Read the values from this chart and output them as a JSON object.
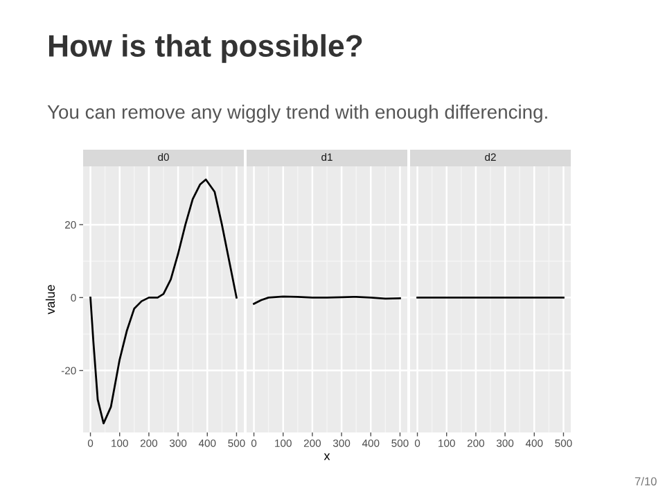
{
  "chart_data": [
    {
      "type": "line",
      "title": "d0",
      "ylabel": "value",
      "annotations": [
        "How is that possible?",
        "You can remove any wiggly trend with enough differencing.",
        "7/10"
      ],
      "x": [
        0,
        10,
        25,
        45,
        70,
        100,
        125,
        150,
        175,
        200,
        230,
        250,
        275,
        300,
        325,
        350,
        375,
        395,
        425,
        450,
        475,
        500
      ],
      "series": [
        {
          "color": "#000000",
          "values": [
            0,
            -12,
            -28,
            -34.5,
            -30,
            -17,
            -9,
            -3,
            -1,
            0,
            0,
            1,
            5,
            12,
            20,
            27,
            31,
            32.4,
            29,
            20,
            10,
            0
          ]
        }
      ],
      "xlim": [
        -25,
        525
      ],
      "ylim": [
        -37,
        36
      ],
      "xticks": [
        0,
        100,
        200,
        300,
        400,
        500
      ],
      "yticks": [
        -20,
        0,
        20
      ],
      "grid": true
    },
    {
      "type": "line",
      "title": "d1",
      "xlabel": "x",
      "x": [
        0,
        25,
        50,
        100,
        150,
        200,
        250,
        300,
        350,
        400,
        450,
        500
      ],
      "series": [
        {
          "color": "#000000",
          "values": [
            -1.7,
            -0.7,
            0,
            0.3,
            0.2,
            0,
            0,
            0.1,
            0.2,
            0,
            -0.3,
            -0.2
          ]
        }
      ],
      "xlim": [
        -25,
        525
      ],
      "ylim": [
        -37,
        36
      ],
      "xticks": [
        0,
        100,
        200,
        300,
        400,
        500
      ],
      "yticks": [
        -20,
        0,
        20
      ],
      "grid": true,
      "tick_labels": "x"
    },
    {
      "type": "line",
      "title": "d2",
      "x": [
        0,
        100,
        200,
        300,
        400,
        500
      ],
      "series": [
        {
          "color": "#000000",
          "values": [
            0,
            0,
            0,
            0,
            0,
            0
          ]
        }
      ],
      "xlim": [
        -25,
        525
      ],
      "ylim": [
        -37,
        36
      ],
      "xticks": [
        0,
        100,
        200,
        300,
        400,
        500
      ],
      "yticks": [
        -20,
        0,
        20
      ],
      "grid": true,
      "tick_labels": "x"
    }
  ]
}
